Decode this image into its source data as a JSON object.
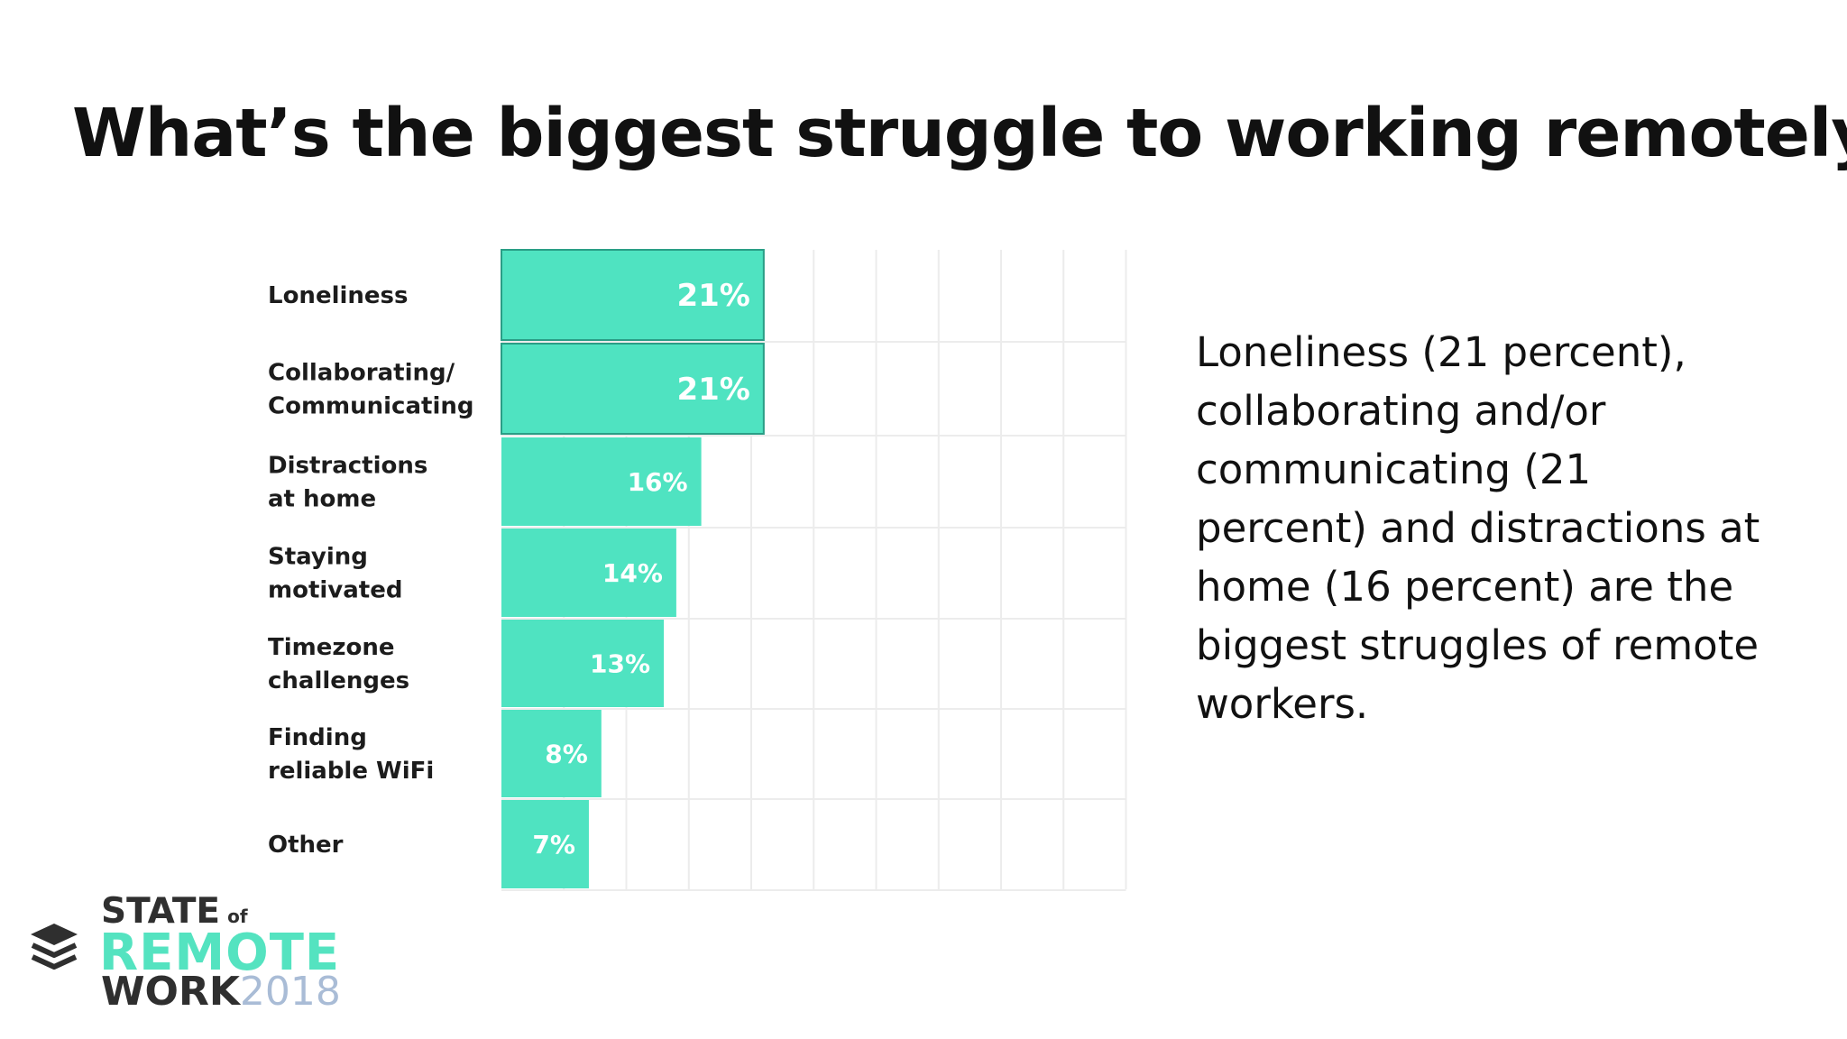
{
  "chart_data": {
    "type": "bar",
    "orientation": "horizontal",
    "title": "What’s the biggest struggle to working remotely?",
    "categories": [
      [
        "Loneliness"
      ],
      [
        "Collaborating/",
        "Communicating"
      ],
      [
        "Distractions",
        "at home"
      ],
      [
        "Staying",
        "motivated"
      ],
      [
        "Timezone",
        "challenges"
      ],
      [
        "Finding",
        "reliable WiFi"
      ],
      [
        "Other"
      ]
    ],
    "values": [
      21,
      21,
      16,
      14,
      13,
      8,
      7
    ],
    "value_labels": [
      "21%",
      "21%",
      "16%",
      "14%",
      "13%",
      "8%",
      "7%"
    ],
    "highlighted": [
      0,
      1
    ],
    "xlim": [
      0,
      50
    ],
    "grid": true,
    "bar_color": "#4fe3c1",
    "grid_color": "#ececec"
  },
  "summary": "Loneliness (21 percent), collaborating and/or communicating (21 percent) and distractions at home (16 percent) are the biggest struggles of remote workers.",
  "logo": {
    "line1": "STATE",
    "of": "of",
    "line2": "REMOTE",
    "line3": "WORK",
    "year": "2018",
    "icon": "stacked-layers-icon",
    "colors": {
      "dark": "#2f2f2f",
      "accent": "#54e3c0",
      "year": "#a9bcd6"
    }
  }
}
